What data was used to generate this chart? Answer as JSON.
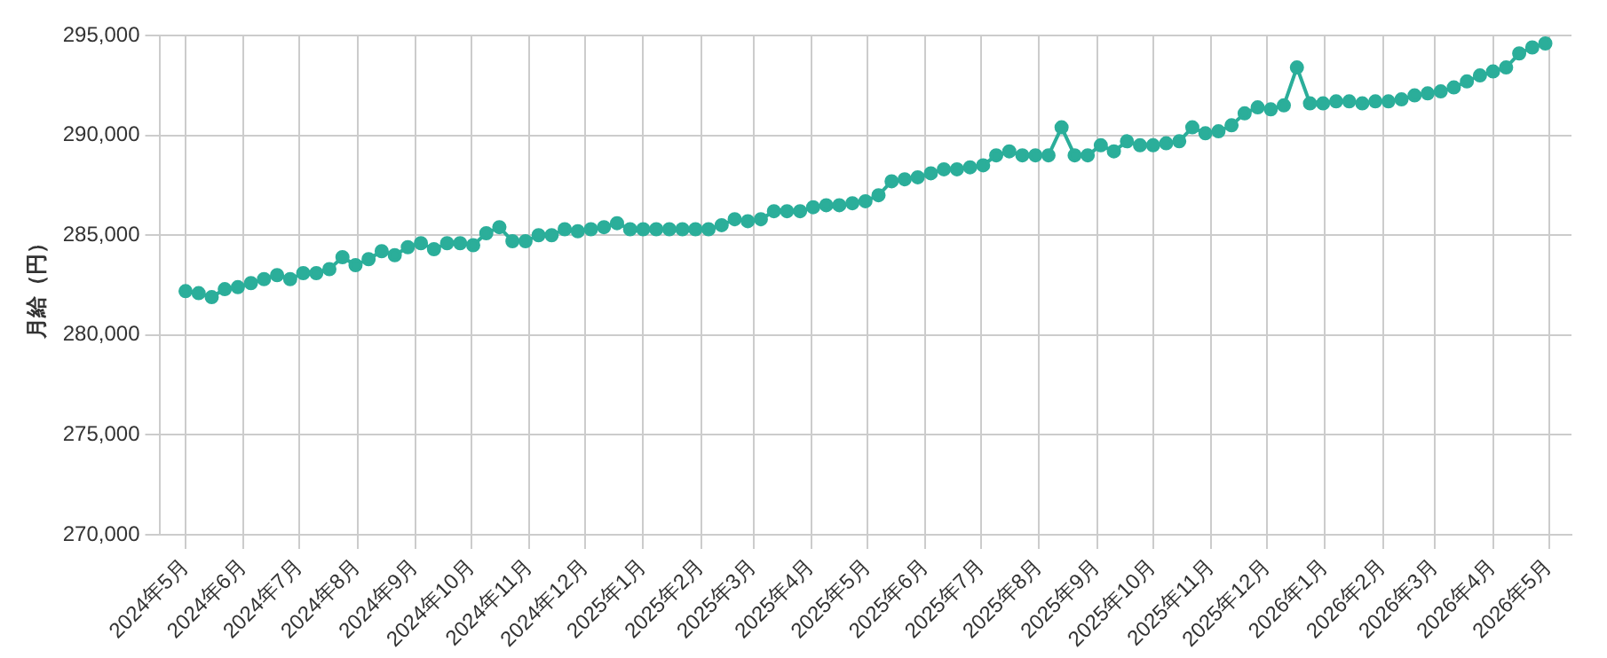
{
  "chart_data": {
    "type": "line",
    "ylabel": "月給（円）",
    "color": "#2bae9a",
    "marker": "circle",
    "line_style": "solid",
    "grid": true,
    "legend": false,
    "x": [
      "2024-05-01",
      "2024-05-08",
      "2024-05-15",
      "2024-05-22",
      "2024-05-29",
      "2024-06-05",
      "2024-06-12",
      "2024-06-19",
      "2024-06-26",
      "2024-07-03",
      "2024-07-10",
      "2024-07-17",
      "2024-07-24",
      "2024-07-31",
      "2024-08-07",
      "2024-08-14",
      "2024-08-21",
      "2024-08-28",
      "2024-09-04",
      "2024-09-11",
      "2024-09-18",
      "2024-09-25",
      "2024-10-02",
      "2024-10-09",
      "2024-10-16",
      "2024-10-23",
      "2024-10-30",
      "2024-11-06",
      "2024-11-13",
      "2024-11-20",
      "2024-11-27",
      "2024-12-04",
      "2024-12-11",
      "2024-12-18",
      "2024-12-25",
      "2025-01-01",
      "2025-01-08",
      "2025-01-15",
      "2025-01-22",
      "2025-01-29",
      "2025-02-05",
      "2025-02-12",
      "2025-02-19",
      "2025-02-26",
      "2025-03-05",
      "2025-03-12",
      "2025-03-19",
      "2025-03-26",
      "2025-04-02",
      "2025-04-09",
      "2025-04-16",
      "2025-04-23",
      "2025-04-30",
      "2025-05-07",
      "2025-05-14",
      "2025-05-21",
      "2025-05-28",
      "2025-06-04",
      "2025-06-11",
      "2025-06-18",
      "2025-06-25",
      "2025-07-02",
      "2025-07-09",
      "2025-07-16",
      "2025-07-23",
      "2025-07-30",
      "2025-08-06",
      "2025-08-13",
      "2025-08-20",
      "2025-08-27",
      "2025-09-03",
      "2025-09-10",
      "2025-09-17",
      "2025-09-24",
      "2025-10-01",
      "2025-10-08",
      "2025-10-15",
      "2025-10-22",
      "2025-10-29",
      "2025-11-05",
      "2025-11-12",
      "2025-11-19",
      "2025-11-26",
      "2025-12-03",
      "2025-12-10",
      "2025-12-17",
      "2025-12-24",
      "2025-12-31",
      "2026-01-07",
      "2026-01-14",
      "2026-01-21",
      "2026-01-28",
      "2026-02-04",
      "2026-02-11",
      "2026-02-18",
      "2026-02-25",
      "2026-03-04",
      "2026-03-11",
      "2026-03-18",
      "2026-03-25",
      "2026-04-01",
      "2026-04-08",
      "2026-04-15",
      "2026-04-22",
      "2026-04-29"
    ],
    "values": [
      282200,
      282100,
      281900,
      282300,
      282400,
      282600,
      282800,
      283000,
      282800,
      283100,
      283100,
      283300,
      283900,
      283500,
      283800,
      284200,
      284000,
      284400,
      284600,
      284300,
      284600,
      284600,
      284500,
      285100,
      285400,
      284700,
      284700,
      285000,
      285000,
      285300,
      285200,
      285300,
      285400,
      285600,
      285300,
      285300,
      285300,
      285300,
      285300,
      285300,
      285300,
      285500,
      285800,
      285700,
      285800,
      286200,
      286200,
      286200,
      286400,
      286500,
      286500,
      286600,
      286700,
      287000,
      287700,
      287800,
      287900,
      288100,
      288300,
      288300,
      288400,
      288500,
      289000,
      289200,
      289000,
      289000,
      289000,
      290400,
      289000,
      289000,
      289500,
      289200,
      289700,
      289500,
      289500,
      289600,
      289700,
      290400,
      290100,
      290200,
      290500,
      291100,
      291400,
      291300,
      291500,
      293400,
      291600,
      291600,
      291700,
      291700,
      291600,
      291700,
      291700,
      291800,
      292000,
      292100,
      292200,
      292400,
      292700,
      293000,
      293200,
      293400,
      294100,
      294400,
      294600
    ],
    "xlim": [
      "2024-04-17",
      "2026-05-13"
    ],
    "xticks": [
      {
        "value": "2024-05",
        "label": "2024年5月"
      },
      {
        "value": "2024-06",
        "label": "2024年6月"
      },
      {
        "value": "2024-07",
        "label": "2024年7月"
      },
      {
        "value": "2024-08",
        "label": "2024年8月"
      },
      {
        "value": "2024-09",
        "label": "2024年9月"
      },
      {
        "value": "2024-10",
        "label": "2024年10月"
      },
      {
        "value": "2024-11",
        "label": "2024年11月"
      },
      {
        "value": "2024-12",
        "label": "2024年12月"
      },
      {
        "value": "2025-01",
        "label": "2025年1月"
      },
      {
        "value": "2025-02",
        "label": "2025年2月"
      },
      {
        "value": "2025-03",
        "label": "2025年3月"
      },
      {
        "value": "2025-04",
        "label": "2025年4月"
      },
      {
        "value": "2025-05",
        "label": "2025年5月"
      },
      {
        "value": "2025-06",
        "label": "2025年6月"
      },
      {
        "value": "2025-07",
        "label": "2025年7月"
      },
      {
        "value": "2025-08",
        "label": "2025年8月"
      },
      {
        "value": "2025-09",
        "label": "2025年9月"
      },
      {
        "value": "2025-10",
        "label": "2025年10月"
      },
      {
        "value": "2025-11",
        "label": "2025年11月"
      },
      {
        "value": "2025-12",
        "label": "2025年12月"
      },
      {
        "value": "2026-01",
        "label": "2026年1月"
      },
      {
        "value": "2026-02",
        "label": "2026年2月"
      },
      {
        "value": "2026-03",
        "label": "2026年3月"
      },
      {
        "value": "2026-04",
        "label": "2026年4月"
      },
      {
        "value": "2026-05",
        "label": "2026年5月"
      }
    ],
    "ylim": [
      270000,
      295000
    ],
    "yticks": [
      {
        "value": 270000,
        "label": "270,000"
      },
      {
        "value": 275000,
        "label": "275,000"
      },
      {
        "value": 280000,
        "label": "280,000"
      },
      {
        "value": 285000,
        "label": "285,000"
      },
      {
        "value": 290000,
        "label": "290,000"
      },
      {
        "value": 295000,
        "label": "295,000"
      }
    ]
  }
}
